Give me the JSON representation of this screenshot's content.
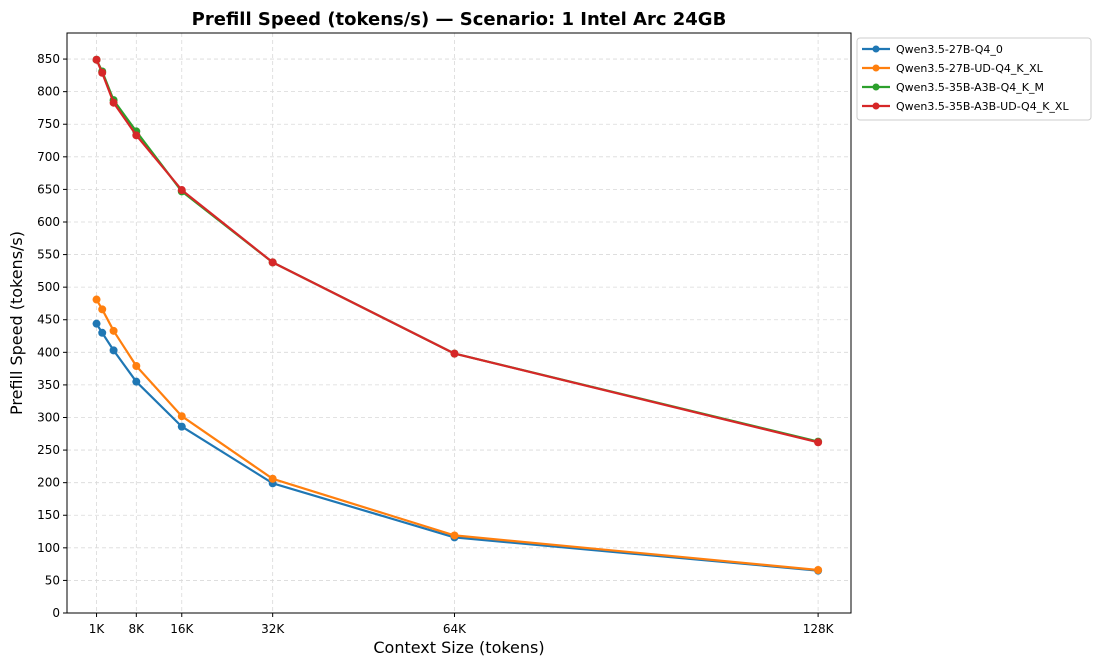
{
  "chart_data": {
    "type": "line",
    "title": "Prefill Speed (tokens/s) — Scenario: 1 Intel Arc 24GB",
    "xlabel": "Context Size (tokens)",
    "ylabel": "Prefill Speed (tokens/s)",
    "x_ticks": [
      {
        "value": 1024,
        "label": "1K"
      },
      {
        "value": 8192,
        "label": "8K"
      },
      {
        "value": 16384,
        "label": "16K"
      },
      {
        "value": 32768,
        "label": "32K"
      },
      {
        "value": 65536,
        "label": "64K"
      },
      {
        "value": 131072,
        "label": "128K"
      }
    ],
    "y_ticks": [
      0,
      50,
      100,
      150,
      200,
      250,
      300,
      350,
      400,
      450,
      500,
      550,
      600,
      650,
      700,
      750,
      800,
      850
    ],
    "xlim": [
      -4300,
      137000
    ],
    "ylim": [
      0,
      890
    ],
    "grid": true,
    "legend_position": "outside-top-right",
    "x": [
      1024,
      2048,
      4096,
      8192,
      16384,
      32768,
      65536,
      131072
    ],
    "series": [
      {
        "name": "Qwen3.5-27B-Q4_0",
        "color": "#1f77b4",
        "values": [
          444,
          430,
          403,
          355,
          286,
          199,
          116,
          65
        ]
      },
      {
        "name": "Qwen3.5-27B-UD-Q4_K_XL",
        "color": "#ff7f0e",
        "values": [
          481,
          466,
          433,
          379,
          302,
          206,
          119,
          66
        ]
      },
      {
        "name": "Qwen3.5-35B-A3B-Q4_K_M",
        "color": "#2ca02c",
        "values": [
          849,
          831,
          787,
          739,
          647,
          538,
          398,
          263
        ]
      },
      {
        "name": "Qwen3.5-35B-A3B-UD-Q4_K_XL",
        "color": "#d62728",
        "values": [
          849,
          829,
          783,
          733,
          649,
          538,
          398,
          262
        ]
      }
    ]
  }
}
